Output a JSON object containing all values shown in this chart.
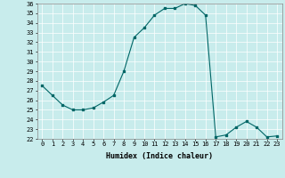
{
  "x": [
    0,
    1,
    2,
    3,
    4,
    5,
    6,
    7,
    8,
    9,
    10,
    11,
    12,
    13,
    14,
    15,
    16,
    17,
    18,
    19,
    20,
    21,
    22,
    23
  ],
  "y": [
    27.5,
    26.5,
    25.5,
    25.0,
    25.0,
    25.2,
    25.8,
    26.5,
    29.0,
    32.5,
    33.5,
    34.8,
    35.5,
    35.5,
    36.0,
    35.8,
    34.8,
    22.2,
    22.4,
    23.2,
    23.8,
    23.2,
    22.2,
    22.3
  ],
  "title": "",
  "xlabel": "Humidex (Indice chaleur)",
  "ylabel": "",
  "xlim": [
    -0.5,
    23.5
  ],
  "ylim": [
    22,
    36
  ],
  "yticks": [
    22,
    23,
    24,
    25,
    26,
    27,
    28,
    29,
    30,
    31,
    32,
    33,
    34,
    35,
    36
  ],
  "xticks": [
    0,
    1,
    2,
    3,
    4,
    5,
    6,
    7,
    8,
    9,
    10,
    11,
    12,
    13,
    14,
    15,
    16,
    17,
    18,
    19,
    20,
    21,
    22,
    23
  ],
  "line_color": "#006666",
  "marker": "s",
  "marker_size": 1.8,
  "bg_color": "#c8ecec",
  "grid_color": "#ffffff",
  "label_fontsize": 6,
  "tick_fontsize": 5
}
